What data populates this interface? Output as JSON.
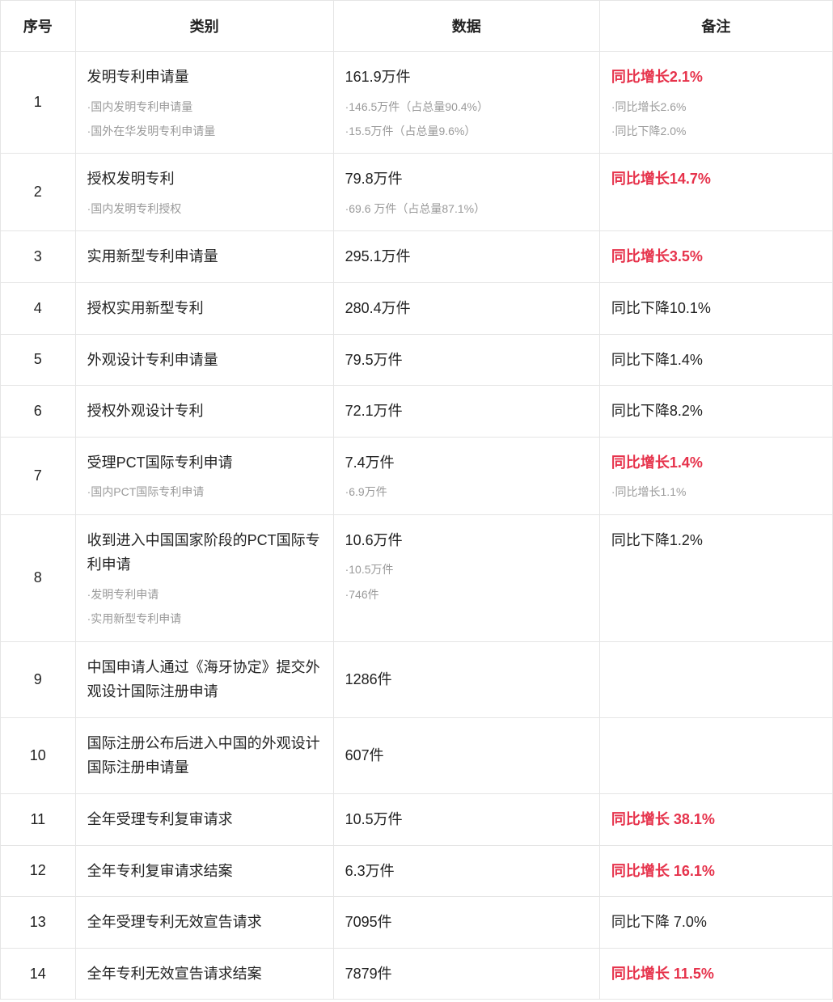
{
  "table": {
    "columns": [
      "序号",
      "类别",
      "数据",
      "备注"
    ],
    "column_widths_pct": [
      9,
      31,
      32,
      28
    ],
    "border_color": "#e5e5e5",
    "header_fontsize_pt": 14,
    "main_fontsize_pt": 13,
    "sub_fontsize_pt": 10,
    "main_text_color": "#222222",
    "sub_text_color": "#9a9a9a",
    "highlight_color": "#e6324b",
    "background_color": "#ffffff",
    "rows": [
      {
        "seq": "1",
        "category": {
          "main": "发明专利申请量",
          "subs": [
            "·国内发明专利申请量",
            "·国外在华发明专利申请量"
          ]
        },
        "data": {
          "main": "161.9万件",
          "subs": [
            "·146.5万件（占总量90.4%）",
            "·15.5万件（占总量9.6%）"
          ]
        },
        "note": {
          "main": "同比增长2.1%",
          "main_highlight": true,
          "subs": [
            "·同比增长2.6%",
            "·同比下降2.0%"
          ]
        }
      },
      {
        "seq": "2",
        "category": {
          "main": "授权发明专利",
          "subs": [
            "·国内发明专利授权"
          ]
        },
        "data": {
          "main": "79.8万件",
          "subs": [
            "·69.6 万件（占总量87.1%）"
          ]
        },
        "note": {
          "main": "同比增长14.7%",
          "main_highlight": true,
          "subs": []
        }
      },
      {
        "seq": "3",
        "category": {
          "main": "实用新型专利申请量",
          "subs": []
        },
        "data": {
          "main": "295.1万件",
          "subs": []
        },
        "note": {
          "main": "同比增长3.5%",
          "main_highlight": true,
          "subs": []
        }
      },
      {
        "seq": "4",
        "category": {
          "main": "授权实用新型专利",
          "subs": []
        },
        "data": {
          "main": "280.4万件",
          "subs": []
        },
        "note": {
          "main": "同比下降10.1%",
          "main_highlight": false,
          "subs": []
        }
      },
      {
        "seq": "5",
        "category": {
          "main": "外观设计专利申请量",
          "subs": []
        },
        "data": {
          "main": "79.5万件",
          "subs": []
        },
        "note": {
          "main": "同比下降1.4%",
          "main_highlight": false,
          "subs": []
        }
      },
      {
        "seq": "6",
        "category": {
          "main": "授权外观设计专利",
          "subs": []
        },
        "data": {
          "main": "72.1万件",
          "subs": []
        },
        "note": {
          "main": "同比下降8.2%",
          "main_highlight": false,
          "subs": []
        }
      },
      {
        "seq": "7",
        "category": {
          "main": "受理PCT国际专利申请",
          "subs": [
            "·国内PCT国际专利申请"
          ]
        },
        "data": {
          "main": "7.4万件",
          "subs": [
            "·6.9万件"
          ]
        },
        "note": {
          "main": "同比增长1.4%",
          "main_highlight": true,
          "subs": [
            "·同比增长1.1%"
          ]
        }
      },
      {
        "seq": "8",
        "category": {
          "main": "收到进入中国国家阶段的PCT国际专利申请",
          "subs": [
            "·发明专利申请",
            "·实用新型专利申请"
          ]
        },
        "data": {
          "main": "10.6万件",
          "subs": [
            "·10.5万件",
            "·746件"
          ]
        },
        "note": {
          "main": "同比下降1.2%",
          "main_highlight": false,
          "subs": []
        }
      },
      {
        "seq": "9",
        "category": {
          "main": "中国申请人通过《海牙协定》提交外观设计国际注册申请",
          "subs": []
        },
        "data": {
          "main": "1286件",
          "subs": []
        },
        "note": {
          "main": "",
          "main_highlight": false,
          "subs": []
        }
      },
      {
        "seq": "10",
        "category": {
          "main": "国际注册公布后进入中国的外观设计国际注册申请量",
          "subs": []
        },
        "data": {
          "main": "607件",
          "subs": []
        },
        "note": {
          "main": "",
          "main_highlight": false,
          "subs": []
        }
      },
      {
        "seq": "11",
        "category": {
          "main": "全年受理专利复审请求",
          "subs": []
        },
        "data": {
          "main": "10.5万件",
          "subs": []
        },
        "note": {
          "main": "同比增长 38.1%",
          "main_highlight": true,
          "subs": []
        }
      },
      {
        "seq": "12",
        "category": {
          "main": "全年专利复审请求结案",
          "subs": []
        },
        "data": {
          "main": "6.3万件",
          "subs": []
        },
        "note": {
          "main": "同比增长 16.1%",
          "main_highlight": true,
          "subs": []
        }
      },
      {
        "seq": "13",
        "category": {
          "main": "全年受理专利无效宣告请求",
          "subs": []
        },
        "data": {
          "main": "7095件",
          "subs": []
        },
        "note": {
          "main": "同比下降 7.0%",
          "main_highlight": false,
          "subs": []
        }
      },
      {
        "seq": "14",
        "category": {
          "main": "全年专利无效宣告请求结案",
          "subs": []
        },
        "data": {
          "main": "7879件",
          "subs": []
        },
        "note": {
          "main": "同比增长 11.5%",
          "main_highlight": true,
          "subs": []
        }
      }
    ]
  }
}
